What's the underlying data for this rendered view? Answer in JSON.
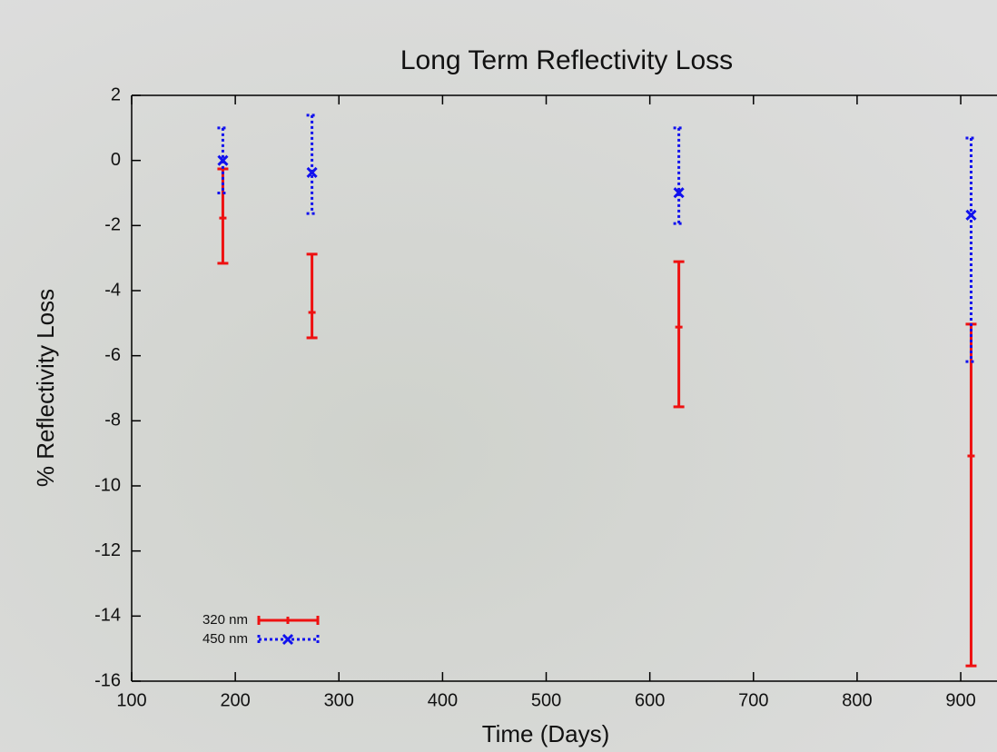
{
  "chart_data": {
    "type": "errorbar",
    "title": "Long Term Reflectivity Loss",
    "x_label": "Time (Days)",
    "y_label": "% Reflectivity Loss",
    "xlim": [
      100,
      935
    ],
    "xticks": [
      100,
      200,
      300,
      400,
      500,
      600,
      700,
      800,
      900
    ],
    "ylim": [
      -16,
      2
    ],
    "yticks": [
      -16,
      -14,
      -12,
      -10,
      -8,
      -6,
      -4,
      -2,
      0,
      2
    ],
    "legend": "lower left",
    "series": [
      {
        "name": "320 nm",
        "color": "#ee1111",
        "line_style": "solid",
        "marker": "bar",
        "x": [
          188,
          274,
          628,
          910
        ],
        "values": [
          -1.77,
          -4.67,
          -5.12,
          -9.08
        ],
        "ylow": [
          -3.16,
          -5.45,
          -7.57,
          -15.53
        ],
        "yhigh": [
          -0.26,
          -2.88,
          -3.11,
          -5.03
        ]
      },
      {
        "name": "450 nm",
        "color": "#1111ee",
        "line_style": "dotted",
        "marker": "x",
        "x": [
          188,
          274,
          628,
          910
        ],
        "values": [
          0.0,
          -0.37,
          -0.99,
          -1.68
        ],
        "ylow": [
          -1.0,
          -1.63,
          -1.94,
          -6.18
        ],
        "yhigh": [
          1.0,
          1.39,
          1.0,
          0.69
        ]
      }
    ]
  }
}
